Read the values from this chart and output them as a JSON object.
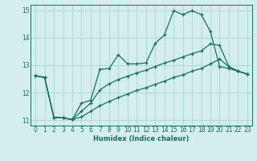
{
  "xlabel": "Humidex (Indice chaleur)",
  "xlim": [
    -0.5,
    23.5
  ],
  "ylim": [
    10.8,
    15.2
  ],
  "yticks": [
    11,
    12,
    13,
    14,
    15
  ],
  "xticks": [
    0,
    1,
    2,
    3,
    4,
    5,
    6,
    7,
    8,
    9,
    10,
    11,
    12,
    13,
    14,
    15,
    16,
    17,
    18,
    19,
    20,
    21,
    22,
    23
  ],
  "bg_color": "#d4eeee",
  "grid_color": "#aad4d4",
  "line_color": "#1a6e60",
  "lines": [
    [
      12.62,
      12.55,
      11.1,
      11.08,
      11.02,
      11.62,
      11.72,
      12.85,
      12.88,
      13.38,
      13.05,
      13.05,
      13.08,
      13.8,
      14.1,
      14.98,
      14.85,
      14.98,
      14.85,
      14.22,
      12.95,
      12.88,
      12.78,
      12.68
    ],
    [
      12.62,
      12.55,
      11.1,
      11.08,
      11.02,
      11.32,
      11.62,
      12.1,
      12.32,
      12.48,
      12.6,
      12.72,
      12.82,
      12.95,
      13.08,
      13.18,
      13.3,
      13.42,
      13.52,
      13.78,
      13.72,
      12.95,
      12.78,
      12.68
    ],
    [
      12.62,
      12.55,
      11.1,
      11.08,
      11.02,
      11.12,
      11.32,
      11.52,
      11.68,
      11.82,
      11.95,
      12.08,
      12.18,
      12.3,
      12.42,
      12.55,
      12.65,
      12.78,
      12.88,
      13.05,
      13.22,
      12.95,
      12.78,
      12.68
    ]
  ]
}
